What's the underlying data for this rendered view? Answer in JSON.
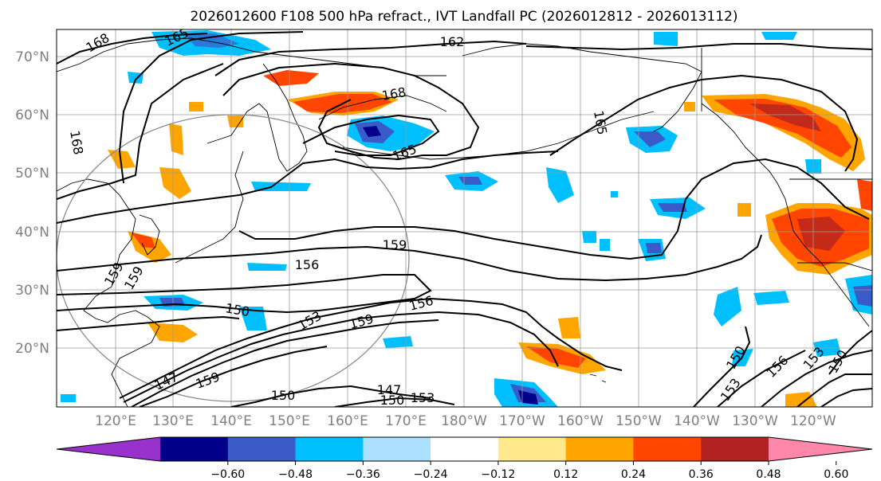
{
  "title": "2026012600 F108 500 hPa refract., IVT Landfall PC (2026012812 - 2026013112)",
  "lat_labels": [
    "70°N",
    "60°N",
    "50°N",
    "40°N",
    "30°N",
    "20°N"
  ],
  "lon_labels": [
    "120°E",
    "130°E",
    "140°E",
    "150°E",
    "160°E",
    "170°E",
    "180°W",
    "170°W",
    "160°W",
    "150°W",
    "140°W",
    "130°W",
    "120°W"
  ],
  "contour_labels": [
    "168",
    "165",
    "162",
    "168",
    "165",
    "168",
    "165",
    "159",
    "156",
    "159",
    "150",
    "153",
    "159",
    "156",
    "147",
    "159",
    "150",
    "147",
    "150",
    "153",
    "150",
    "153",
    "156",
    "153",
    "150",
    "159",
    "165"
  ],
  "colorbar": {
    "colors": [
      "#9932CC",
      "#00008B",
      "#3A5BC7",
      "#00BFFF",
      "#ADDFFF",
      "#FFFFFF",
      "#FFE98C",
      "#FFA500",
      "#FF4500",
      "#B22222",
      "#FF88AA"
    ],
    "ticks": [
      "−0.60",
      "−0.48",
      "−0.36",
      "−0.24",
      "−0.12",
      "0.12",
      "0.24",
      "0.36",
      "0.48",
      "0.60"
    ]
  }
}
